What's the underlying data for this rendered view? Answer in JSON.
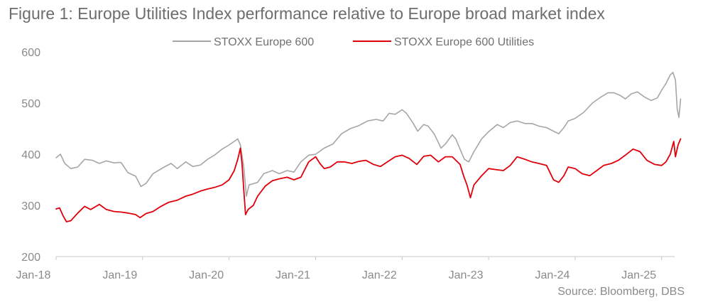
{
  "header": {
    "title": "Figure 1: Europe Utilities Index performance relative to Europe broad market index"
  },
  "footer": {
    "source": "Source: Bloomberg, DBS"
  },
  "chart_data": {
    "type": "line",
    "title": "Figure 1: Europe Utilities Index performance relative to Europe broad market index",
    "xlabel": "",
    "ylabel": "",
    "xlim": [
      2018.0,
      2025.15
    ],
    "ylim": [
      200,
      600
    ],
    "x_ticks": [
      {
        "value": 2018,
        "label": "Jan-18"
      },
      {
        "value": 2019,
        "label": "Jan-19"
      },
      {
        "value": 2020,
        "label": "Jan-20"
      },
      {
        "value": 2021,
        "label": "Jan-21"
      },
      {
        "value": 2022,
        "label": "Jan-22"
      },
      {
        "value": 2023,
        "label": "Jan-23"
      },
      {
        "value": 2024,
        "label": "Jan-24"
      },
      {
        "value": 2025,
        "label": "Jan-25"
      }
    ],
    "y_ticks": [
      200,
      300,
      400,
      500,
      600
    ],
    "grid": false,
    "legend_position": "top-center",
    "series": [
      {
        "name": "STOXX Europe 600",
        "color": "#a6a6a6",
        "points": [
          [
            2018.0,
            393
          ],
          [
            2018.05,
            400
          ],
          [
            2018.1,
            382
          ],
          [
            2018.17,
            372
          ],
          [
            2018.25,
            375
          ],
          [
            2018.33,
            390
          ],
          [
            2018.42,
            388
          ],
          [
            2018.5,
            382
          ],
          [
            2018.58,
            387
          ],
          [
            2018.67,
            383
          ],
          [
            2018.75,
            384
          ],
          [
            2018.83,
            364
          ],
          [
            2018.92,
            357
          ],
          [
            2018.98,
            337
          ],
          [
            2019.04,
            343
          ],
          [
            2019.12,
            362
          ],
          [
            2019.25,
            375
          ],
          [
            2019.33,
            382
          ],
          [
            2019.4,
            372
          ],
          [
            2019.5,
            385
          ],
          [
            2019.58,
            376
          ],
          [
            2019.67,
            379
          ],
          [
            2019.75,
            390
          ],
          [
            2019.83,
            398
          ],
          [
            2019.92,
            410
          ],
          [
            2020.0,
            418
          ],
          [
            2020.1,
            430
          ],
          [
            2020.13,
            418
          ],
          [
            2020.17,
            375
          ],
          [
            2020.2,
            318
          ],
          [
            2020.23,
            340
          ],
          [
            2020.33,
            345
          ],
          [
            2020.4,
            362
          ],
          [
            2020.5,
            368
          ],
          [
            2020.58,
            362
          ],
          [
            2020.67,
            368
          ],
          [
            2020.75,
            365
          ],
          [
            2020.83,
            385
          ],
          [
            2020.92,
            398
          ],
          [
            2021.0,
            400
          ],
          [
            2021.1,
            412
          ],
          [
            2021.2,
            420
          ],
          [
            2021.3,
            440
          ],
          [
            2021.4,
            450
          ],
          [
            2021.5,
            456
          ],
          [
            2021.6,
            465
          ],
          [
            2021.7,
            468
          ],
          [
            2021.78,
            465
          ],
          [
            2021.85,
            480
          ],
          [
            2021.92,
            478
          ],
          [
            2022.0,
            487
          ],
          [
            2022.05,
            480
          ],
          [
            2022.13,
            460
          ],
          [
            2022.18,
            445
          ],
          [
            2022.25,
            458
          ],
          [
            2022.3,
            455
          ],
          [
            2022.37,
            440
          ],
          [
            2022.45,
            412
          ],
          [
            2022.5,
            420
          ],
          [
            2022.58,
            438
          ],
          [
            2022.62,
            430
          ],
          [
            2022.67,
            410
          ],
          [
            2022.72,
            390
          ],
          [
            2022.77,
            385
          ],
          [
            2022.83,
            405
          ],
          [
            2022.92,
            430
          ],
          [
            2023.0,
            444
          ],
          [
            2023.1,
            458
          ],
          [
            2023.17,
            452
          ],
          [
            2023.25,
            462
          ],
          [
            2023.33,
            465
          ],
          [
            2023.42,
            460
          ],
          [
            2023.5,
            460
          ],
          [
            2023.58,
            455
          ],
          [
            2023.67,
            452
          ],
          [
            2023.75,
            445
          ],
          [
            2023.81,
            440
          ],
          [
            2023.87,
            452
          ],
          [
            2023.92,
            465
          ],
          [
            2024.0,
            470
          ],
          [
            2024.1,
            482
          ],
          [
            2024.2,
            500
          ],
          [
            2024.3,
            512
          ],
          [
            2024.38,
            520
          ],
          [
            2024.45,
            520
          ],
          [
            2024.52,
            515
          ],
          [
            2024.58,
            508
          ],
          [
            2024.65,
            518
          ],
          [
            2024.72,
            522
          ],
          [
            2024.8,
            512
          ],
          [
            2024.88,
            505
          ],
          [
            2024.95,
            510
          ],
          [
            2025.0,
            525
          ],
          [
            2025.05,
            538
          ],
          [
            2025.1,
            555
          ],
          [
            2025.13,
            560
          ],
          [
            2025.16,
            545
          ],
          [
            2025.18,
            488
          ],
          [
            2025.2,
            472
          ],
          [
            2025.22,
            508
          ]
        ]
      },
      {
        "name": "STOXX Europe 600 Utilities",
        "color": "#e0000b",
        "points": [
          [
            2018.0,
            293
          ],
          [
            2018.04,
            295
          ],
          [
            2018.08,
            280
          ],
          [
            2018.12,
            268
          ],
          [
            2018.17,
            270
          ],
          [
            2018.25,
            285
          ],
          [
            2018.33,
            298
          ],
          [
            2018.4,
            292
          ],
          [
            2018.5,
            302
          ],
          [
            2018.58,
            292
          ],
          [
            2018.67,
            288
          ],
          [
            2018.75,
            287
          ],
          [
            2018.83,
            285
          ],
          [
            2018.92,
            282
          ],
          [
            2018.97,
            276
          ],
          [
            2019.04,
            284
          ],
          [
            2019.12,
            288
          ],
          [
            2019.2,
            297
          ],
          [
            2019.3,
            306
          ],
          [
            2019.4,
            310
          ],
          [
            2019.5,
            318
          ],
          [
            2019.58,
            322
          ],
          [
            2019.67,
            328
          ],
          [
            2019.75,
            332
          ],
          [
            2019.83,
            335
          ],
          [
            2019.92,
            340
          ],
          [
            2020.0,
            350
          ],
          [
            2020.06,
            368
          ],
          [
            2020.1,
            390
          ],
          [
            2020.13,
            412
          ],
          [
            2020.15,
            380
          ],
          [
            2020.17,
            330
          ],
          [
            2020.19,
            282
          ],
          [
            2020.22,
            292
          ],
          [
            2020.28,
            300
          ],
          [
            2020.33,
            318
          ],
          [
            2020.42,
            338
          ],
          [
            2020.5,
            348
          ],
          [
            2020.58,
            352
          ],
          [
            2020.67,
            355
          ],
          [
            2020.75,
            350
          ],
          [
            2020.83,
            355
          ],
          [
            2020.92,
            385
          ],
          [
            2021.0,
            395
          ],
          [
            2021.05,
            382
          ],
          [
            2021.1,
            372
          ],
          [
            2021.17,
            375
          ],
          [
            2021.25,
            385
          ],
          [
            2021.33,
            385
          ],
          [
            2021.42,
            382
          ],
          [
            2021.5,
            386
          ],
          [
            2021.58,
            388
          ],
          [
            2021.67,
            380
          ],
          [
            2021.75,
            376
          ],
          [
            2021.83,
            385
          ],
          [
            2021.92,
            395
          ],
          [
            2022.0,
            398
          ],
          [
            2022.08,
            392
          ],
          [
            2022.17,
            380
          ],
          [
            2022.25,
            396
          ],
          [
            2022.33,
            398
          ],
          [
            2022.42,
            385
          ],
          [
            2022.5,
            395
          ],
          [
            2022.58,
            395
          ],
          [
            2022.67,
            380
          ],
          [
            2022.71,
            358
          ],
          [
            2022.75,
            340
          ],
          [
            2022.79,
            315
          ],
          [
            2022.83,
            340
          ],
          [
            2022.92,
            358
          ],
          [
            2023.0,
            372
          ],
          [
            2023.08,
            370
          ],
          [
            2023.17,
            368
          ],
          [
            2023.25,
            378
          ],
          [
            2023.33,
            395
          ],
          [
            2023.42,
            390
          ],
          [
            2023.5,
            385
          ],
          [
            2023.58,
            382
          ],
          [
            2023.67,
            378
          ],
          [
            2023.75,
            350
          ],
          [
            2023.81,
            345
          ],
          [
            2023.87,
            358
          ],
          [
            2023.92,
            375
          ],
          [
            2024.0,
            372
          ],
          [
            2024.08,
            362
          ],
          [
            2024.17,
            358
          ],
          [
            2024.25,
            368
          ],
          [
            2024.33,
            378
          ],
          [
            2024.42,
            382
          ],
          [
            2024.5,
            388
          ],
          [
            2024.58,
            398
          ],
          [
            2024.67,
            410
          ],
          [
            2024.75,
            405
          ],
          [
            2024.83,
            388
          ],
          [
            2024.92,
            380
          ],
          [
            2025.0,
            378
          ],
          [
            2025.05,
            385
          ],
          [
            2025.1,
            400
          ],
          [
            2025.14,
            425
          ],
          [
            2025.16,
            395
          ],
          [
            2025.19,
            418
          ],
          [
            2025.22,
            430
          ]
        ]
      }
    ]
  }
}
